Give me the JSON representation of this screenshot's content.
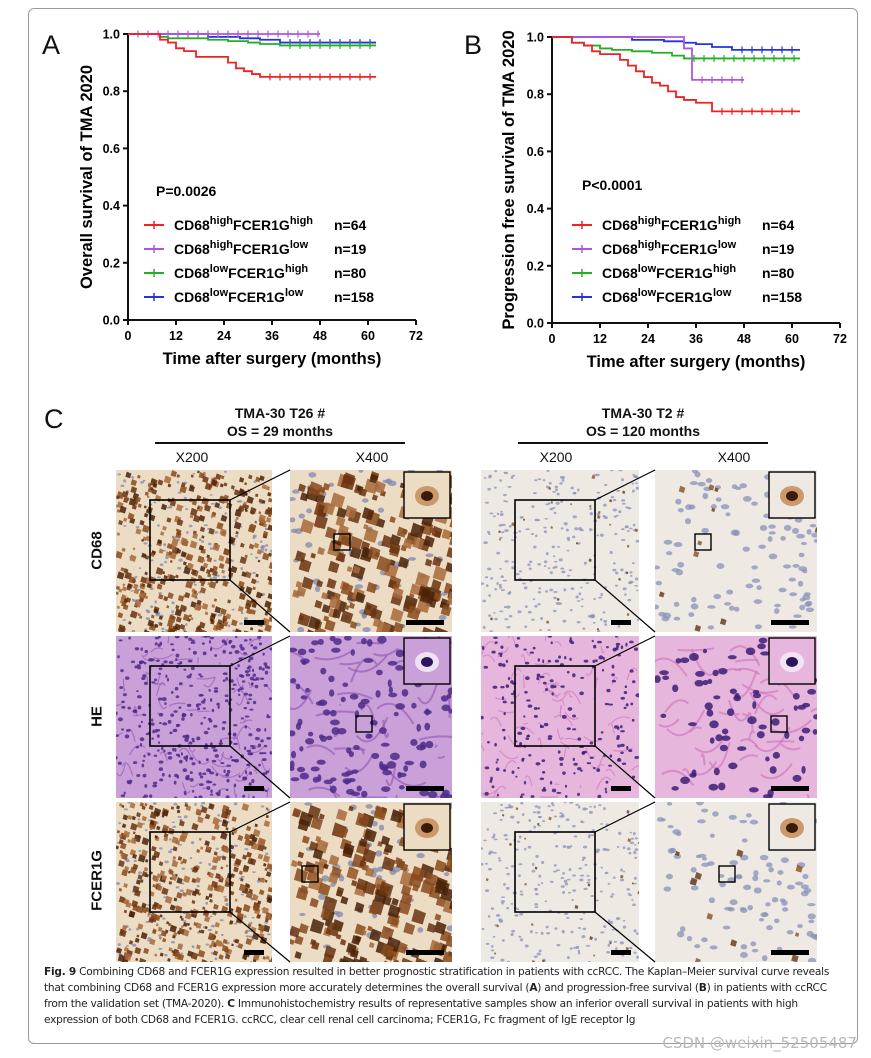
{
  "figure": {
    "panel_labels": [
      "A",
      "B",
      "C"
    ],
    "caption": {
      "fig_label": "Fig. 9",
      "text_1": " Combining CD68 and FCER1G expression resulted in better prognostic stratification in patients with ccRCC. The Kaplan–Meier survival curve reveals that combining CD68 and FCER1G expression more accurately determines the overall survival (",
      "ref_a": "A",
      "text_2": ") and progression-free survival (",
      "ref_b": "B",
      "text_3": ") in patients with ccRCC from the validation set (TMA-2020). ",
      "ref_c": "C",
      "text_4": " Immunohistochemistry results of representative samples show an inferior overall survival in patients with high expression of both CD68 and FCER1G. ccRCC, clear cell renal cell carcinoma; FCER1G, Fc fragment of IgE receptor Ig"
    },
    "watermark": "CSDN @weixin_52505487"
  },
  "chart_data": [
    {
      "panel": "A",
      "type": "line",
      "subtype": "kaplan-meier",
      "ylabel": "Overall survival of TMA 2020",
      "xlabel": "Time after surgery (months)",
      "xlim": [
        0,
        72
      ],
      "ylim": [
        0,
        1.0
      ],
      "xticks": [
        "0",
        "12",
        "24",
        "36",
        "48",
        "60",
        "72"
      ],
      "yticks": [
        "0.0",
        "0.2",
        "0.4",
        "0.6",
        "0.8",
        "1.0"
      ],
      "annotation": "P=0.0026",
      "legend_position": "lower-left",
      "series": [
        {
          "base": "CD68",
          "sup1": "high",
          "mid": "FCER1G",
          "sup2": "high",
          "n": "n=64",
          "color": "#ee2222",
          "x": [
            0,
            8,
            10,
            12,
            14,
            17,
            22,
            25,
            27,
            29,
            31,
            33,
            62
          ],
          "y": [
            1.0,
            0.98,
            0.97,
            0.95,
            0.94,
            0.92,
            0.92,
            0.9,
            0.88,
            0.87,
            0.86,
            0.85,
            0.85
          ]
        },
        {
          "base": "CD68",
          "sup1": "high",
          "mid": "FCER1G",
          "sup2": "low",
          "n": "n=19",
          "color": "#b055e0",
          "x": [
            0,
            48
          ],
          "y": [
            1.0,
            1.0
          ]
        },
        {
          "base": "CD68",
          "sup1": "low",
          "mid": "FCER1G",
          "sup2": "high",
          "n": "n=80",
          "color": "#22b022",
          "x": [
            0,
            8,
            10,
            20,
            25,
            30,
            33,
            38,
            62
          ],
          "y": [
            1.0,
            0.99,
            0.985,
            0.98,
            0.975,
            0.97,
            0.965,
            0.96,
            0.96
          ]
        },
        {
          "base": "CD68",
          "sup1": "low",
          "mid": "FCER1G",
          "sup2": "low",
          "n": "n=158",
          "color": "#2233dd",
          "x": [
            0,
            20,
            28,
            33,
            38,
            62
          ],
          "y": [
            1.0,
            0.99,
            0.985,
            0.98,
            0.97,
            0.97
          ]
        }
      ]
    },
    {
      "panel": "B",
      "type": "line",
      "subtype": "kaplan-meier",
      "ylabel": "Progression free survival of TMA 2020",
      "xlabel": "Time after surgery (months)",
      "xlim": [
        0,
        72
      ],
      "ylim": [
        0,
        1.0
      ],
      "xticks": [
        "0",
        "12",
        "24",
        "36",
        "48",
        "60",
        "72"
      ],
      "yticks": [
        "0.0",
        "0.2",
        "0.4",
        "0.6",
        "0.8",
        "1.0"
      ],
      "annotation": "P<0.0001",
      "legend_position": "lower-left",
      "series": [
        {
          "base": "CD68",
          "sup1": "high",
          "mid": "FCER1G",
          "sup2": "high",
          "n": "n=64",
          "color": "#ee2222",
          "x": [
            0,
            5,
            8,
            10,
            12,
            17,
            19,
            21,
            23,
            25,
            27,
            29,
            31,
            33,
            36,
            40,
            62
          ],
          "y": [
            1.0,
            0.98,
            0.97,
            0.95,
            0.94,
            0.92,
            0.9,
            0.88,
            0.86,
            0.84,
            0.83,
            0.81,
            0.79,
            0.78,
            0.77,
            0.74,
            0.74
          ]
        },
        {
          "base": "CD68",
          "sup1": "high",
          "mid": "FCER1G",
          "sup2": "low",
          "n": "n=19",
          "color": "#b055e0",
          "x": [
            0,
            33,
            35,
            48
          ],
          "y": [
            1.0,
            0.96,
            0.85,
            0.85
          ]
        },
        {
          "base": "CD68",
          "sup1": "low",
          "mid": "FCER1G",
          "sup2": "high",
          "n": "n=80",
          "color": "#22b022",
          "x": [
            0,
            5,
            8,
            12,
            15,
            20,
            25,
            30,
            33,
            62
          ],
          "y": [
            1.0,
            0.98,
            0.97,
            0.96,
            0.955,
            0.95,
            0.945,
            0.935,
            0.925,
            0.925
          ]
        },
        {
          "base": "CD68",
          "sup1": "low",
          "mid": "FCER1G",
          "sup2": "low",
          "n": "n=158",
          "color": "#2233dd",
          "x": [
            0,
            20,
            28,
            33,
            36,
            40,
            45,
            62
          ],
          "y": [
            1.0,
            0.99,
            0.985,
            0.98,
            0.975,
            0.965,
            0.955,
            0.955
          ]
        }
      ]
    }
  ],
  "ihc": {
    "cases": [
      {
        "title": "TMA-30  T26 #",
        "os": "OS = 29 months"
      },
      {
        "title": "TMA-30  T2 #",
        "os": "OS = 120 months"
      }
    ],
    "magnifications": [
      "X200",
      "X400",
      "X200",
      "X400"
    ],
    "rows": [
      "CD68",
      "HE",
      "FCER1G"
    ]
  }
}
